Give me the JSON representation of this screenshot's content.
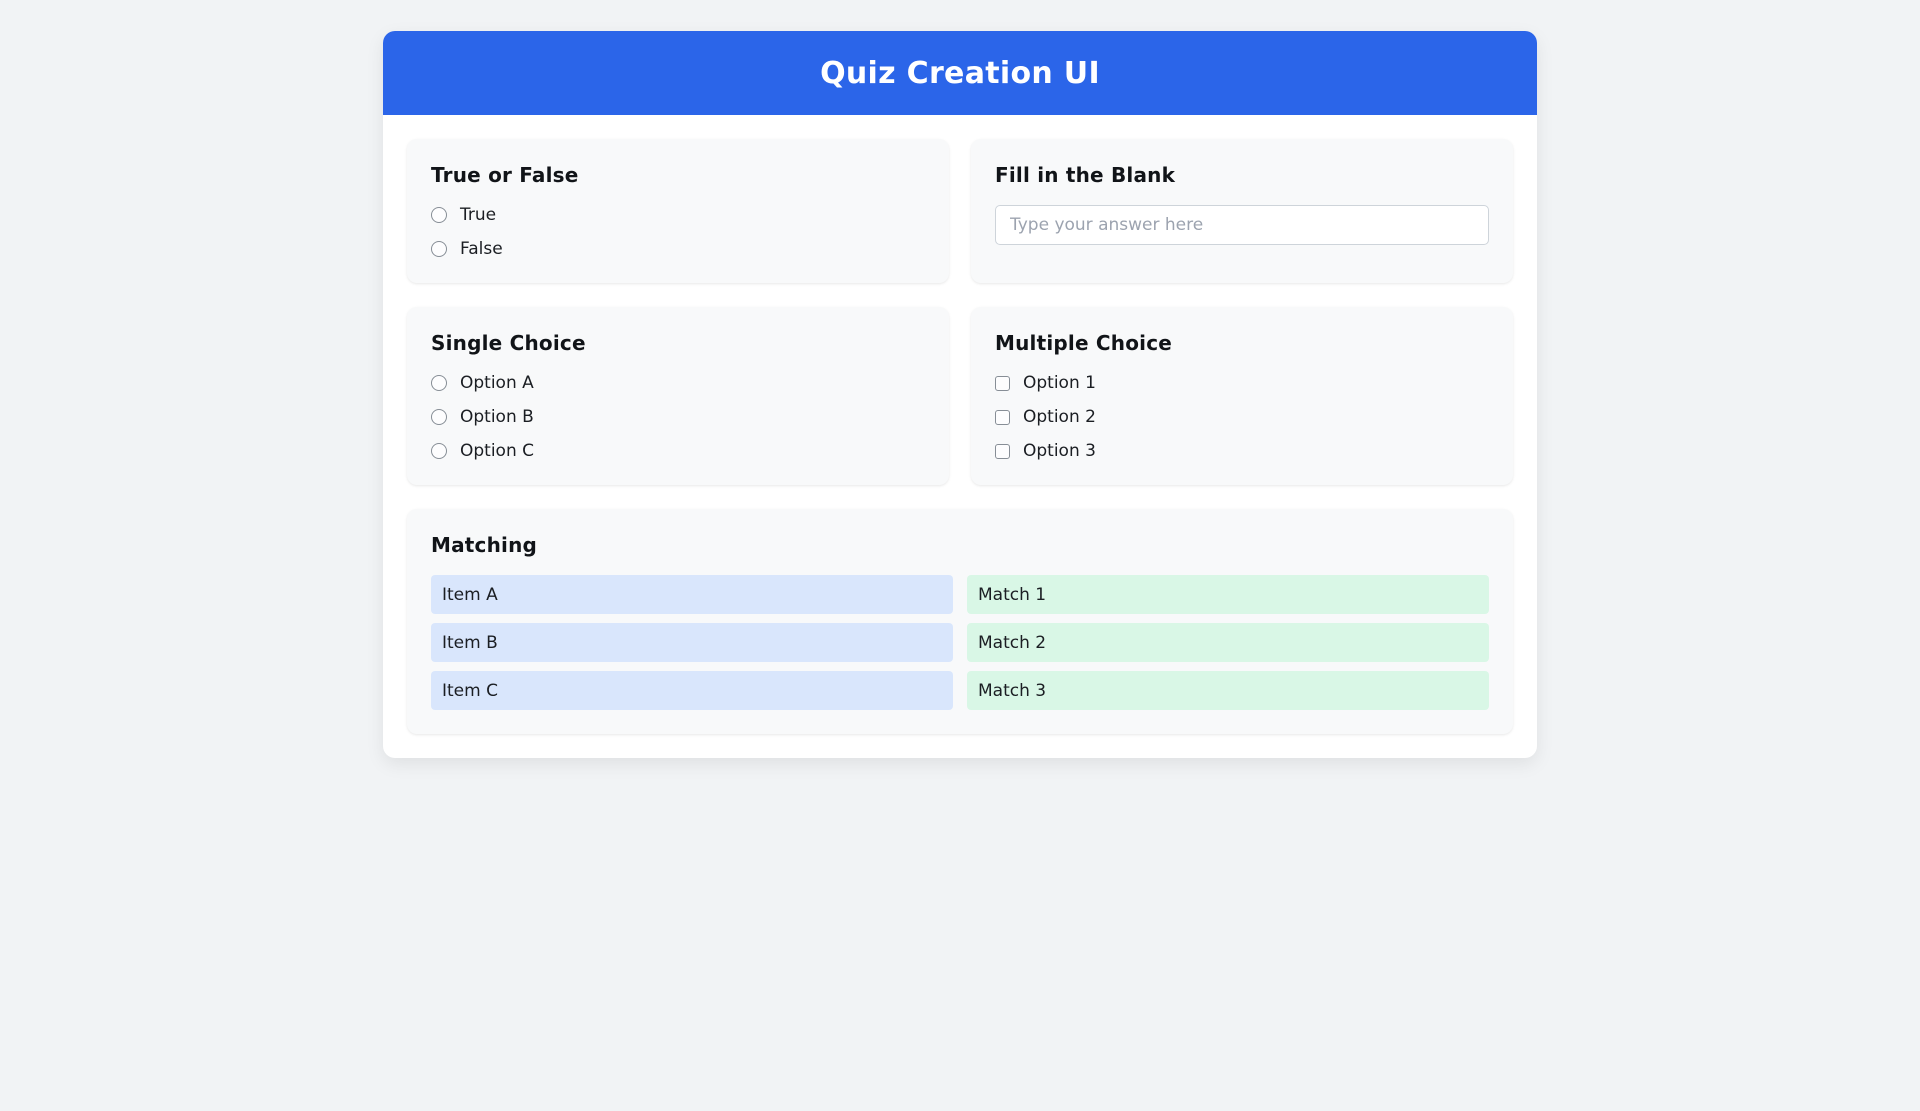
{
  "header": {
    "title": "Quiz Creation UI"
  },
  "sections": {
    "true_false": {
      "title": "True or False",
      "options": [
        "True",
        "False"
      ]
    },
    "fill_blank": {
      "title": "Fill in the Blank",
      "placeholder": "Type your answer here",
      "input_value": ""
    },
    "single_choice": {
      "title": "Single Choice",
      "options": [
        "Option A",
        "Option B",
        "Option C"
      ]
    },
    "multiple_choice": {
      "title": "Multiple Choice",
      "options": [
        "Option 1",
        "Option 2",
        "Option 3"
      ]
    },
    "matching": {
      "title": "Matching",
      "items": [
        "Item A",
        "Item B",
        "Item C"
      ],
      "matches": [
        "Match 1",
        "Match 2",
        "Match 3"
      ]
    }
  },
  "colors": {
    "header-bg": "#2b65e9",
    "header-text": "#ffffff",
    "page-bg": "#f1f3f5",
    "card-bg": "#ffffff",
    "section-bg": "#f8f9fa",
    "item-bg": "#d9e6fc",
    "match-bg": "#d9f7e6",
    "text": "#1b1e23",
    "placeholder": "#9ca3af",
    "input-border": "#ced4da"
  }
}
